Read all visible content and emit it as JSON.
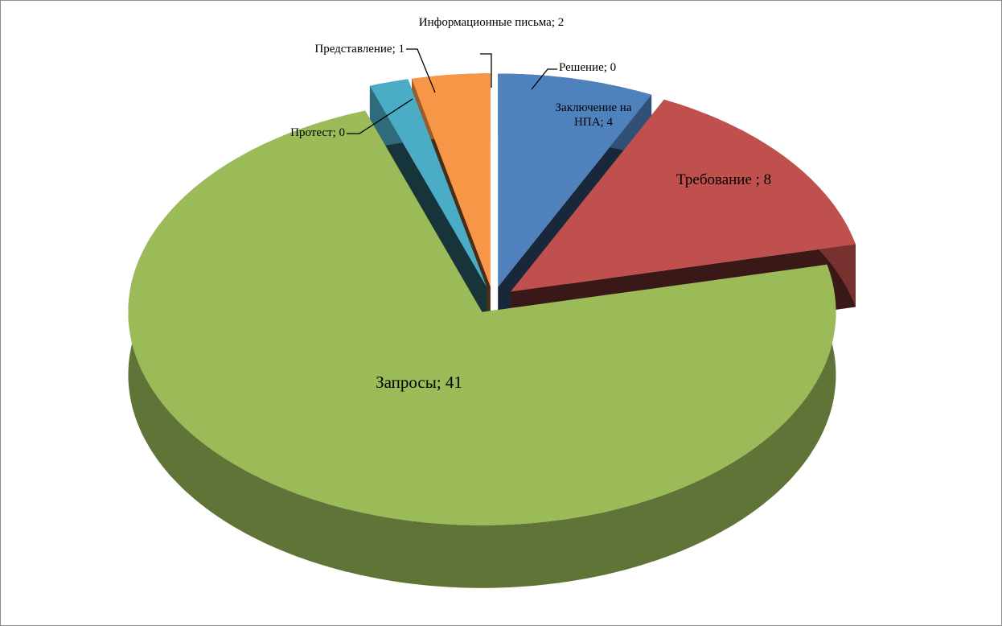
{
  "chart_data": {
    "type": "pie3d",
    "categories": [
      "Заключение на НПА",
      "Требование",
      "Запросы",
      "Протест",
      "Представление",
      "Информационные письма",
      "Решение"
    ],
    "values": [
      4,
      8,
      41,
      0,
      1,
      2,
      0
    ],
    "value_labels": [
      "; 4",
      " ; 8",
      "; 41",
      "; 0",
      "; 1",
      "; 2",
      "; 0"
    ],
    "colors": [
      "#4f81bd",
      "#c0504d",
      "#9bbb59",
      "#2e2b50",
      "#4bacc6",
      "#f79646",
      "#ffffff"
    ]
  }
}
